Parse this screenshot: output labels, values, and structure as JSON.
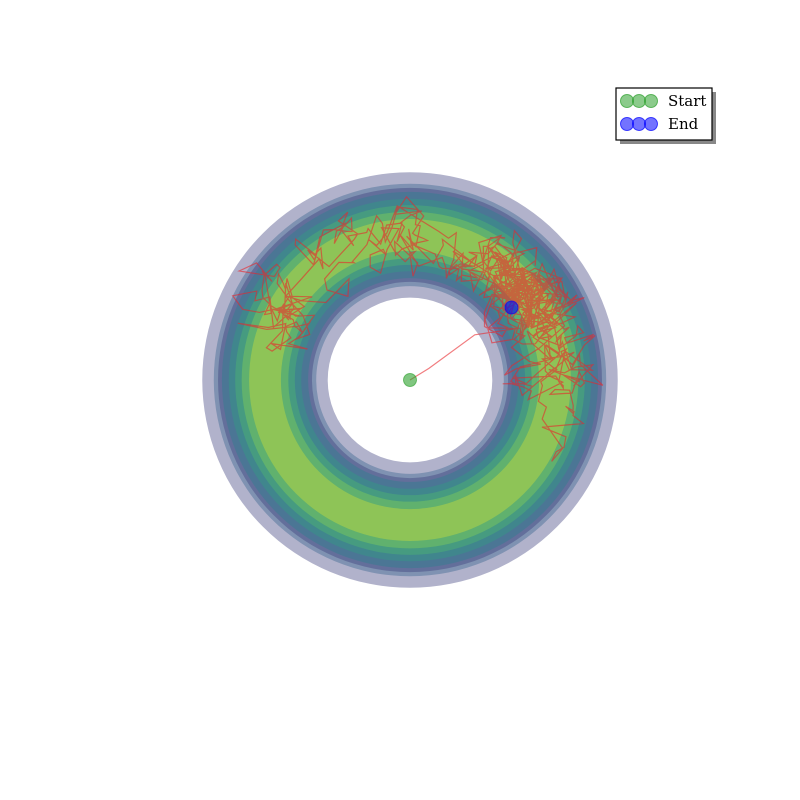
{
  "chart_data": {
    "type": "line",
    "title": "",
    "xlabel": "",
    "ylabel": "",
    "axes_visible": false,
    "grid": false,
    "xlim": [
      -1.6,
      1.6
    ],
    "ylim": [
      -1.6,
      1.6
    ],
    "background": {
      "type": "filled-contour-ring",
      "description_free": true,
      "center": [
        0,
        0
      ],
      "peak_radius": 1.0,
      "width": 0.3,
      "levels": 8,
      "colormap": [
        "#440154",
        "#3b528b",
        "#21918c",
        "#5ec962",
        "#fde725"
      ],
      "alpha": 0.4
    },
    "series": [
      {
        "color": "#e8272b",
        "alpha": 0.6,
        "seed": 7,
        "start": [
          0.0,
          0.0
        ],
        "end": [
          0.7,
          0.5
        ],
        "steps": 700
      }
    ],
    "markers": {
      "start": {
        "x": 0.0,
        "y": 0.0,
        "color": "#2ca02c"
      },
      "end": {
        "x": 0.7,
        "y": 0.5,
        "color": "#0000ff"
      }
    },
    "legend": {
      "position": "top-right",
      "entries": [
        {
          "label": "Start",
          "color": "#2ca02c"
        },
        {
          "label": "End",
          "color": "#0000ff"
        }
      ]
    }
  }
}
